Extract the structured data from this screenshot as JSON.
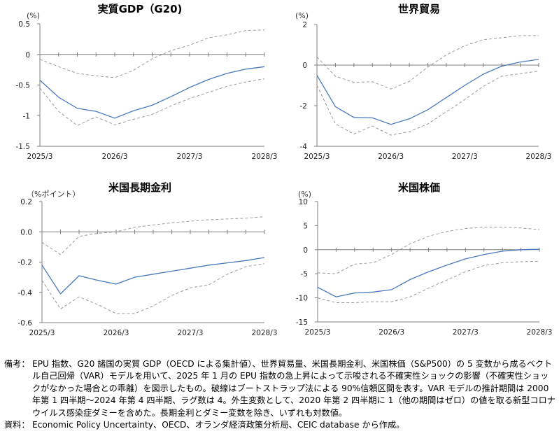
{
  "chart_data": [
    {
      "type": "line",
      "title": "実質GDP（G20)",
      "unit": "(%)",
      "x_labels": [
        "2025/3",
        "2026/3",
        "2027/3",
        "2028/3"
      ],
      "ylim": [
        -1.5,
        0.5
      ],
      "y_ticks": [
        0.5,
        0,
        -0.5,
        -1,
        -1.5
      ],
      "y_tick_labels": [
        "0.5",
        "0",
        "-0.5",
        "-1",
        "-1.5"
      ],
      "series": [
        {
          "style": "point",
          "values": [
            -0.42,
            -0.7,
            -0.88,
            -0.93,
            -1.04,
            -0.92,
            -0.83,
            -0.69,
            -0.54,
            -0.41,
            -0.31,
            -0.24,
            -0.2
          ]
        },
        {
          "style": "upper",
          "values": [
            -0.08,
            -0.2,
            -0.31,
            -0.35,
            -0.38,
            -0.26,
            -0.07,
            0.06,
            0.15,
            0.27,
            0.32,
            0.39,
            0.4
          ]
        },
        {
          "style": "lower",
          "values": [
            -0.55,
            -0.93,
            -1.16,
            -1.02,
            -1.15,
            -1.06,
            -0.98,
            -0.84,
            -0.72,
            -0.62,
            -0.52,
            -0.45,
            -0.4
          ]
        }
      ]
    },
    {
      "type": "line",
      "title": "世界貿易",
      "unit": "(%)",
      "x_labels": [
        "2025/3",
        "2026/3",
        "2027/3",
        "2028/3"
      ],
      "ylim": [
        -4,
        2
      ],
      "y_ticks": [
        2,
        0,
        -2,
        -4
      ],
      "y_tick_labels": [
        "2",
        "0",
        "-2",
        "-4"
      ],
      "series": [
        {
          "style": "point",
          "values": [
            -0.5,
            -2.05,
            -2.58,
            -2.6,
            -2.92,
            -2.65,
            -2.2,
            -1.6,
            -1.0,
            -0.45,
            -0.05,
            0.15,
            0.28
          ]
        },
        {
          "style": "upper",
          "values": [
            0.4,
            -0.55,
            -0.85,
            -0.82,
            -1.18,
            -0.8,
            -0.1,
            0.5,
            0.95,
            1.25,
            1.35,
            1.45,
            1.45
          ]
        },
        {
          "style": "lower",
          "values": [
            -1.0,
            -2.9,
            -3.4,
            -3.0,
            -3.45,
            -3.28,
            -2.9,
            -2.3,
            -1.7,
            -1.05,
            -0.55,
            -0.42,
            -0.3
          ]
        }
      ]
    },
    {
      "type": "line",
      "title": "米国長期金利",
      "unit": "（%ポイント）",
      "x_labels": [
        "2025/3",
        "2026/3",
        "2027/3",
        "2028/3"
      ],
      "ylim": [
        -0.6,
        0.2
      ],
      "y_ticks": [
        0.2,
        0,
        -0.2,
        -0.4,
        -0.6
      ],
      "y_tick_labels": [
        "0.2",
        "0.0",
        "-0.2",
        "-0.4",
        "-0.6"
      ],
      "series": [
        {
          "style": "point",
          "values": [
            -0.22,
            -0.41,
            -0.29,
            -0.32,
            -0.345,
            -0.3,
            -0.28,
            -0.26,
            -0.24,
            -0.22,
            -0.205,
            -0.19,
            -0.17
          ]
        },
        {
          "style": "upper",
          "values": [
            -0.07,
            -0.15,
            -0.03,
            -0.01,
            0.0,
            0.03,
            0.045,
            0.06,
            0.07,
            0.08,
            0.085,
            0.09,
            0.1
          ]
        },
        {
          "style": "lower",
          "values": [
            -0.32,
            -0.51,
            -0.43,
            -0.48,
            -0.54,
            -0.54,
            -0.49,
            -0.42,
            -0.37,
            -0.35,
            -0.28,
            -0.23,
            -0.21
          ]
        }
      ]
    },
    {
      "type": "line",
      "title": "米国株価",
      "unit": "(%)",
      "x_labels": [
        "2025/3",
        "2026/3",
        "2027/3",
        "2028/3"
      ],
      "ylim": [
        -15,
        10
      ],
      "y_ticks": [
        10,
        5,
        0,
        -5,
        -10,
        -15
      ],
      "y_tick_labels": [
        "10",
        "5",
        "0",
        "-5",
        "-10",
        "-15"
      ],
      "series": [
        {
          "style": "point",
          "values": [
            -7.8,
            -9.8,
            -9.0,
            -8.8,
            -8.3,
            -6.2,
            -4.6,
            -3.2,
            -1.9,
            -1.0,
            -0.3,
            0.0,
            0.1
          ]
        },
        {
          "style": "upper",
          "values": [
            -4.8,
            -5.0,
            -3.0,
            -2.7,
            -1.0,
            1.2,
            2.8,
            3.8,
            4.4,
            4.7,
            4.7,
            4.5,
            4.2
          ]
        },
        {
          "style": "lower",
          "values": [
            -10.0,
            -11.0,
            -11.0,
            -10.8,
            -10.8,
            -9.8,
            -8.0,
            -6.3,
            -4.6,
            -3.3,
            -2.7,
            -2.5,
            -2.4
          ]
        }
      ]
    }
  ],
  "colors": {
    "point": "#4a7abd",
    "band": "#9a9a9a",
    "axis": "#7f7f7f"
  },
  "notes": {
    "label1": "備考：",
    "text1": "EPU 指数、G20 諸国の実質 GDP（OECD による集計値）、世界貿易量、米国長期金利、米国株価（S&P500）の 5 変数から成るベクトル自己回帰（VAR）モデルを用いて、2025 年 1 月の EPU 指数の急上昇によって示唆される不確実性ショックの影響（不確実性ショックがなかった場合との乖離）を図示したもの。破線はブートストラップ法による 90%信頼区間を表す。VAR モデルの推計期間は 2000 年第 1 四半期～2024 年第 4 四半期、ラグ数は 4。外生変数として、2020 年第 2 四半期に 1（他の期間はゼロ）の値を取る新型コロナウイルス感染症ダミーを含めた。長期金利とダミー変数を除き、いずれも対数値。",
    "label2": "資料：",
    "text2": "Economic Policy Uncertainty、OECD、オランダ経済政策分析局、CEIC database から作成。"
  }
}
